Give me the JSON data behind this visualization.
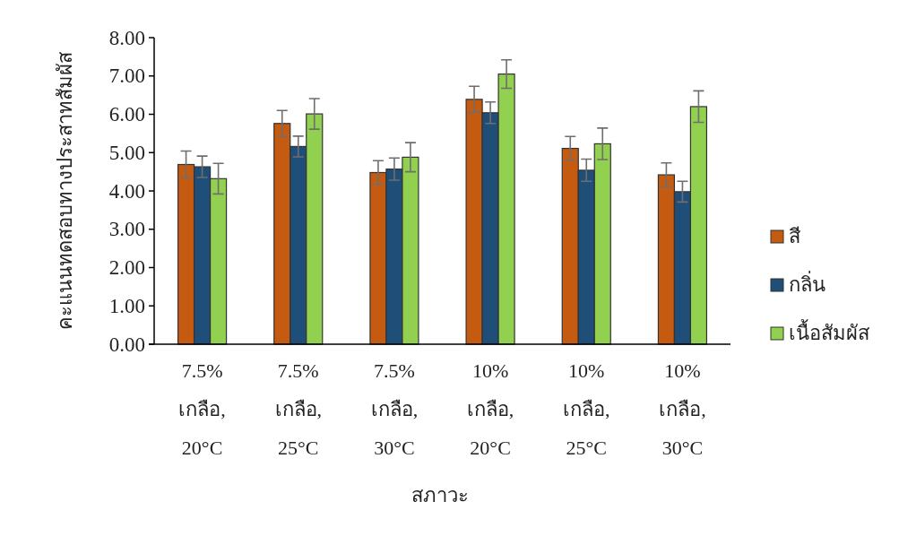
{
  "chart_data": {
    "type": "bar",
    "xlabel": "สภาวะ",
    "ylabel": "คะแนนทดสอบทางประสาทสัมผัส",
    "categories": [
      "7.5% เกลือ, 20°C",
      "7.5% เกลือ, 25°C",
      "7.5% เกลือ, 30°C",
      "10% เกลือ, 20°C",
      "10% เกลือ, 25°C",
      "10% เกลือ, 30°C"
    ],
    "series": [
      {
        "name": "สี",
        "color": "#c55a11",
        "values": [
          4.69,
          5.76,
          4.48,
          6.39,
          5.11,
          4.42
        ],
        "errors": [
          0.35,
          0.34,
          0.31,
          0.34,
          0.31,
          0.31
        ]
      },
      {
        "name": "กลิ่น",
        "color": "#1f4e79",
        "values": [
          4.63,
          5.16,
          4.57,
          6.04,
          4.54,
          3.98
        ],
        "errors": [
          0.28,
          0.27,
          0.29,
          0.28,
          0.29,
          0.27
        ]
      },
      {
        "name": "เนื้อสัมผัส",
        "color": "#92d050",
        "values": [
          4.32,
          6.01,
          4.88,
          7.05,
          5.23,
          6.2
        ],
        "errors": [
          0.4,
          0.4,
          0.38,
          0.37,
          0.41,
          0.41
        ]
      }
    ],
    "ylim": [
      0,
      8
    ],
    "yticks": [
      {
        "value": 0,
        "label": "0.00"
      },
      {
        "value": 1,
        "label": "1.00"
      },
      {
        "value": 2,
        "label": "2.00"
      },
      {
        "value": 3,
        "label": "3.00"
      },
      {
        "value": 4,
        "label": "4.00"
      },
      {
        "value": 5,
        "label": "5.00"
      },
      {
        "value": 6,
        "label": "6.00"
      },
      {
        "value": 7,
        "label": "7.00"
      },
      {
        "value": 8,
        "label": "8.00"
      }
    ],
    "grid": false,
    "legend": "right"
  }
}
